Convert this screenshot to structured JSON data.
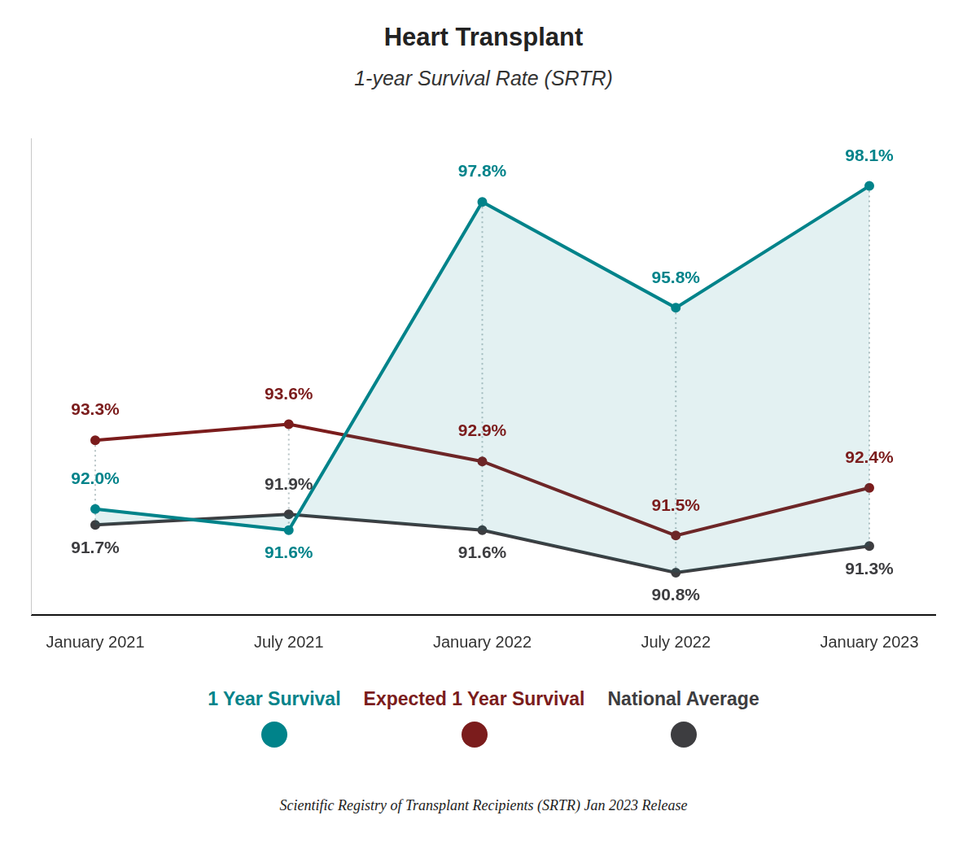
{
  "chart_data": {
    "type": "line",
    "title": "Heart Transplant",
    "subtitle": "1-year Survival Rate (SRTR)",
    "source": "Scientific Registry of Transplant Recipients (SRTR) Jan 2023 Release",
    "categories": [
      "January 2021",
      "July 2021",
      "January 2022",
      "July 2022",
      "January 2023"
    ],
    "series": [
      {
        "name": "1 Year Survival",
        "color": "#00838a",
        "values": [
          92.0,
          91.6,
          97.8,
          95.8,
          98.1
        ],
        "value_labels": [
          "92.0%",
          "91.6%",
          "97.8%",
          "95.8%",
          "98.1%"
        ]
      },
      {
        "name": "Expected 1 Year Survival",
        "color": "#7b1c1c",
        "values": [
          93.3,
          93.6,
          92.9,
          91.5,
          92.4
        ],
        "value_labels": [
          "93.3%",
          "93.6%",
          "92.9%",
          "91.5%",
          "92.4%"
        ]
      },
      {
        "name": "National Average",
        "color": "#3d3d40",
        "values": [
          91.7,
          91.9,
          91.6,
          90.8,
          91.3
        ],
        "value_labels": [
          "91.7%",
          "91.9%",
          "91.6%",
          "90.8%",
          "91.3%"
        ]
      }
    ],
    "ylim": [
      90,
      99
    ],
    "data_labels": true,
    "tick_labels": "x",
    "grid": false,
    "legend": "bottom"
  }
}
